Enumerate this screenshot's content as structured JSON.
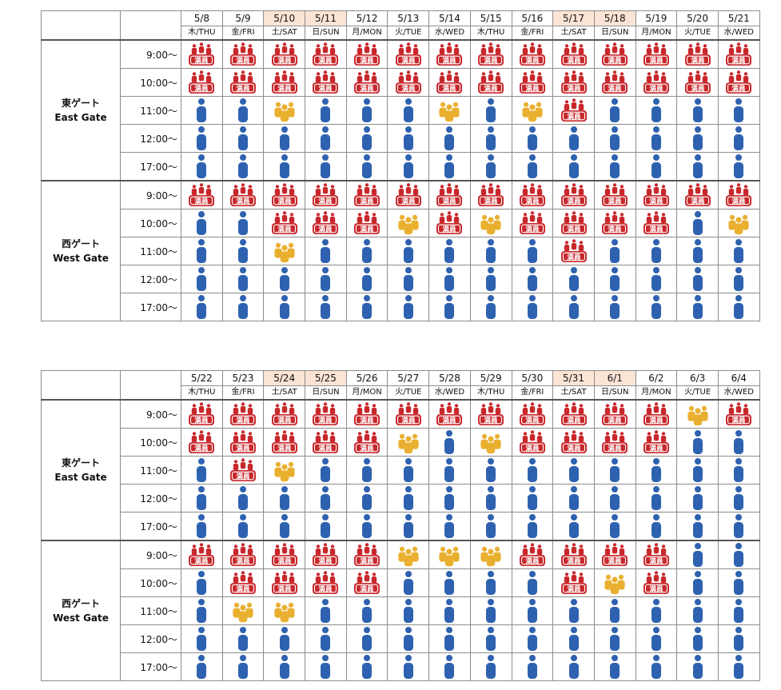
{
  "tables": [
    {
      "days": [
        {
          "date": "5/8",
          "dow": "木/THU",
          "weekend": false
        },
        {
          "date": "5/9",
          "dow": "金/FRI",
          "weekend": false
        },
        {
          "date": "5/10",
          "dow": "土/SAT",
          "weekend": true
        },
        {
          "date": "5/11",
          "dow": "日/SUN",
          "weekend": true
        },
        {
          "date": "5/12",
          "dow": "月/MON",
          "weekend": false
        },
        {
          "date": "5/13",
          "dow": "火/TUE",
          "weekend": false
        },
        {
          "date": "5/14",
          "dow": "水/WED",
          "weekend": false
        },
        {
          "date": "5/15",
          "dow": "木/THU",
          "weekend": false
        },
        {
          "date": "5/16",
          "dow": "金/FRI",
          "weekend": false
        },
        {
          "date": "5/17",
          "dow": "土/SAT",
          "weekend": true
        },
        {
          "date": "5/18",
          "dow": "日/SUN",
          "weekend": true
        },
        {
          "date": "5/19",
          "dow": "月/MON",
          "weekend": false
        },
        {
          "date": "5/20",
          "dow": "火/TUE",
          "weekend": false
        },
        {
          "date": "5/21",
          "dow": "水/WED",
          "weekend": false
        }
      ],
      "gates": [
        {
          "name_jp": "東ゲート",
          "name_en": "East Gate",
          "times": [
            "9:00～",
            "10:00～",
            "11:00～",
            "12:00～",
            "17:00～"
          ],
          "status": [
            [
              "F",
              "F",
              "F",
              "F",
              "F",
              "F",
              "F",
              "F",
              "F",
              "F",
              "F",
              "F",
              "F",
              "F"
            ],
            [
              "F",
              "F",
              "F",
              "F",
              "F",
              "F",
              "F",
              "F",
              "F",
              "F",
              "F",
              "F",
              "F",
              "F"
            ],
            [
              "A",
              "A",
              "B",
              "A",
              "A",
              "A",
              "B",
              "A",
              "B",
              "F",
              "A",
              "A",
              "A",
              "A"
            ],
            [
              "A",
              "A",
              "A",
              "A",
              "A",
              "A",
              "A",
              "A",
              "A",
              "A",
              "A",
              "A",
              "A",
              "A"
            ],
            [
              "A",
              "A",
              "A",
              "A",
              "A",
              "A",
              "A",
              "A",
              "A",
              "A",
              "A",
              "A",
              "A",
              "A"
            ]
          ]
        },
        {
          "name_jp": "西ゲート",
          "name_en": "West Gate",
          "times": [
            "9:00～",
            "10:00～",
            "11:00～",
            "12:00～",
            "17:00～"
          ],
          "status": [
            [
              "F",
              "F",
              "F",
              "F",
              "F",
              "F",
              "F",
              "F",
              "F",
              "F",
              "F",
              "F",
              "F",
              "F"
            ],
            [
              "A",
              "A",
              "F",
              "F",
              "F",
              "B",
              "F",
              "B",
              "F",
              "F",
              "F",
              "F",
              "A",
              "B"
            ],
            [
              "A",
              "A",
              "B",
              "A",
              "A",
              "A",
              "A",
              "A",
              "A",
              "F",
              "A",
              "A",
              "A",
              "A"
            ],
            [
              "A",
              "A",
              "A",
              "A",
              "A",
              "A",
              "A",
              "A",
              "A",
              "A",
              "A",
              "A",
              "A",
              "A"
            ],
            [
              "A",
              "A",
              "A",
              "A",
              "A",
              "A",
              "A",
              "A",
              "A",
              "A",
              "A",
              "A",
              "A",
              "A"
            ]
          ]
        }
      ]
    },
    {
      "days": [
        {
          "date": "5/22",
          "dow": "木/THU",
          "weekend": false
        },
        {
          "date": "5/23",
          "dow": "金/FRI",
          "weekend": false
        },
        {
          "date": "5/24",
          "dow": "土/SAT",
          "weekend": true
        },
        {
          "date": "5/25",
          "dow": "日/SUN",
          "weekend": true
        },
        {
          "date": "5/26",
          "dow": "月/MON",
          "weekend": false
        },
        {
          "date": "5/27",
          "dow": "火/TUE",
          "weekend": false
        },
        {
          "date": "5/28",
          "dow": "水/WED",
          "weekend": false
        },
        {
          "date": "5/29",
          "dow": "木/THU",
          "weekend": false
        },
        {
          "date": "5/30",
          "dow": "金/FRI",
          "weekend": false
        },
        {
          "date": "5/31",
          "dow": "土/SAT",
          "weekend": true
        },
        {
          "date": "6/1",
          "dow": "日/SUN",
          "weekend": true
        },
        {
          "date": "6/2",
          "dow": "月/MON",
          "weekend": false
        },
        {
          "date": "6/3",
          "dow": "火/TUE",
          "weekend": false
        },
        {
          "date": "6/4",
          "dow": "水/WED",
          "weekend": false
        }
      ],
      "gates": [
        {
          "name_jp": "東ゲート",
          "name_en": "East Gate",
          "times": [
            "9:00～",
            "10:00～",
            "11:00～",
            "12:00～",
            "17:00～"
          ],
          "status": [
            [
              "F",
              "F",
              "F",
              "F",
              "F",
              "F",
              "F",
              "F",
              "F",
              "F",
              "F",
              "F",
              "B",
              "F"
            ],
            [
              "F",
              "F",
              "F",
              "F",
              "F",
              "B",
              "A",
              "B",
              "F",
              "F",
              "F",
              "F",
              "A",
              "A"
            ],
            [
              "A",
              "F",
              "B",
              "A",
              "A",
              "A",
              "A",
              "A",
              "A",
              "A",
              "A",
              "A",
              "A",
              "A"
            ],
            [
              "A",
              "A",
              "A",
              "A",
              "A",
              "A",
              "A",
              "A",
              "A",
              "A",
              "A",
              "A",
              "A",
              "A"
            ],
            [
              "A",
              "A",
              "A",
              "A",
              "A",
              "A",
              "A",
              "A",
              "A",
              "A",
              "A",
              "A",
              "A",
              "A"
            ]
          ]
        },
        {
          "name_jp": "西ゲート",
          "name_en": "West Gate",
          "times": [
            "9:00～",
            "10:00～",
            "11:00～",
            "12:00～",
            "17:00～"
          ],
          "status": [
            [
              "F",
              "F",
              "F",
              "F",
              "F",
              "B",
              "B",
              "B",
              "F",
              "F",
              "F",
              "F",
              "A",
              "A"
            ],
            [
              "A",
              "F",
              "F",
              "F",
              "F",
              "A",
              "A",
              "A",
              "A",
              "F",
              "B",
              "F",
              "A",
              "A"
            ],
            [
              "A",
              "B",
              "B",
              "A",
              "A",
              "A",
              "A",
              "A",
              "A",
              "A",
              "A",
              "A",
              "A",
              "A"
            ],
            [
              "A",
              "A",
              "A",
              "A",
              "A",
              "A",
              "A",
              "A",
              "A",
              "A",
              "A",
              "A",
              "A",
              "A"
            ],
            [
              "A",
              "A",
              "A",
              "A",
              "A",
              "A",
              "A",
              "A",
              "A",
              "A",
              "A",
              "A",
              "A",
              "A"
            ]
          ]
        }
      ]
    }
  ],
  "full_label": "満員",
  "icons": {
    "A": "person-available-icon",
    "B": "group-crowded-icon",
    "F": "full-capacity-icon"
  },
  "colors": {
    "available": "#2e62b0",
    "crowded": "#e9b030",
    "full": "#c8282c",
    "weekend_header": "#fbe4d5"
  }
}
